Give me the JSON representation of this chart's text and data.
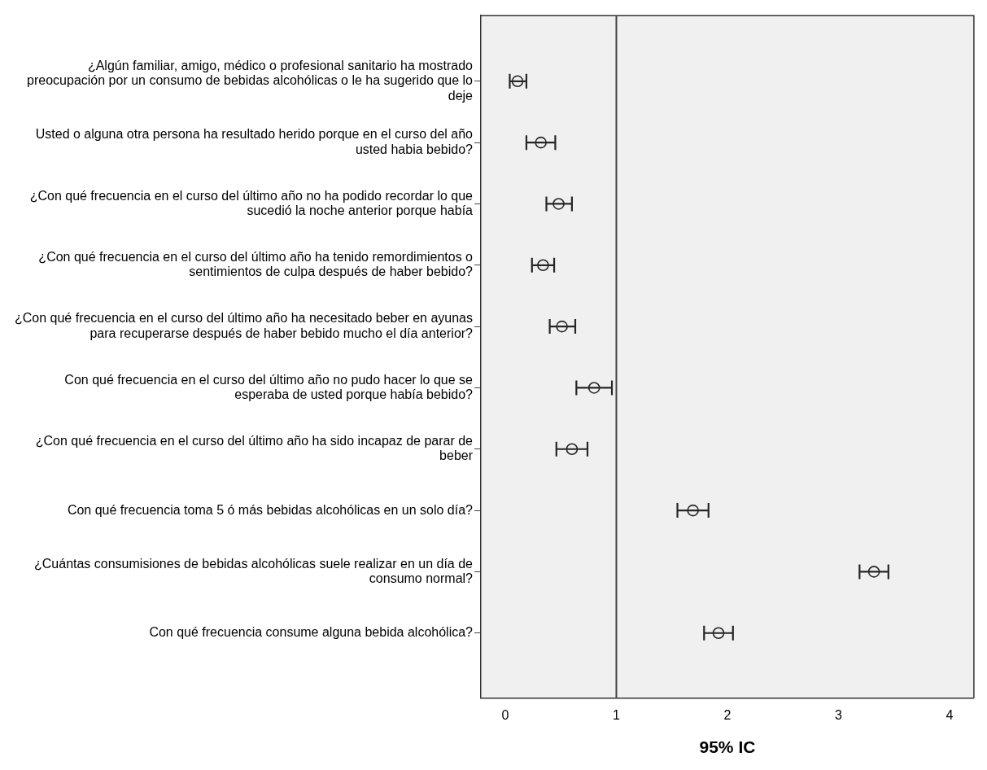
{
  "chart_data": {
    "type": "scatter",
    "orientation": "horizontal",
    "xlabel": "95% IC",
    "categories": [
      "¿Algún familiar, amigo, médico o profesional sanitario ha mostrado preocupación por un consumo de bebidas alcohólicas o le ha sugerido que lo deje",
      "Usted o alguna otra persona ha resultado herido porque en el curso del año usted habia bebido?",
      "¿Con qué frecuencia en el curso del último año no ha podido recordar lo que sucedió la noche anterior porque había",
      "¿Con qué frecuencia en el curso del último año ha tenido remordimientos o sentimientos de culpa después de haber bebido?",
      "¿Con qué frecuencia en el curso del último año ha necesitado beber en ayunas para recuperarse después de haber bebido mucho el día anterior?",
      "Con qué frecuencia en el curso del último año no pudo hacer lo que se esperaba de usted porque había bebido?",
      "¿Con qué frecuencia en el curso del último año ha sido incapaz de parar de beber",
      "Con qué frecuencia toma 5 ó más bebidas alcohólicas en un solo día?",
      "¿Cuántas consumisiones de bebidas alcohólicas suele realizar en un día de consumo normal?",
      "Con qué frecuencia consume alguna bebida alcohólica?"
    ],
    "values": [
      0.11,
      0.32,
      0.48,
      0.34,
      0.51,
      0.8,
      0.6,
      1.69,
      3.32,
      1.92
    ],
    "errors": [
      [
        0.04,
        0.19
      ],
      [
        0.19,
        0.45
      ],
      [
        0.37,
        0.6
      ],
      [
        0.24,
        0.44
      ],
      [
        0.4,
        0.63
      ],
      [
        0.64,
        0.96
      ],
      [
        0.46,
        0.74
      ],
      [
        1.55,
        1.83
      ],
      [
        3.19,
        3.45
      ],
      [
        1.79,
        2.05
      ]
    ],
    "color": "#262626",
    "marker": "circle",
    "grid": false,
    "legend": false,
    "xlim": [
      -0.22,
      4.22
    ],
    "xticks": [
      0,
      1,
      2,
      3,
      4
    ],
    "ref_lines": [
      {
        "axis": "x",
        "value": 1,
        "color": "#404040"
      }
    ]
  }
}
